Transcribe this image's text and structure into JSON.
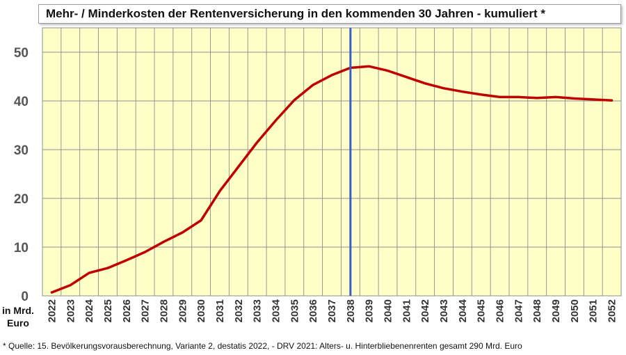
{
  "chart_data": {
    "type": "line",
    "title": "Mehr- / Minderkosten der Rentenversicherung in den kommenden 30 Jahren - kumuliert *",
    "ylabel": "in Mrd. Euro",
    "xlabel": "",
    "ylim": [
      0,
      55
    ],
    "yticks": [
      0,
      10,
      20,
      30,
      40,
      50
    ],
    "grid": true,
    "legend": "none",
    "highlight_year": "2038",
    "categories": [
      "2022",
      "2023",
      "2024",
      "2025",
      "2026",
      "2027",
      "2028",
      "2029",
      "2030",
      "2031",
      "2032",
      "2033",
      "2034",
      "2035",
      "2036",
      "2037",
      "2038",
      "2039",
      "2040",
      "2041",
      "2042",
      "2043",
      "2044",
      "2045",
      "2046",
      "2047",
      "2048",
      "2049",
      "2050",
      "2051",
      "2052"
    ],
    "series": [
      {
        "values": [
          0.7,
          2.2,
          4.7,
          5.7,
          7.3,
          9.0,
          11.1,
          13.0,
          15.5,
          21.5,
          26.5,
          31.5,
          36.0,
          40.2,
          43.3,
          45.3,
          46.8,
          47.1,
          46.2,
          44.9,
          43.6,
          42.6,
          41.9,
          41.3,
          40.8,
          40.8,
          40.6,
          40.8,
          40.5,
          40.3,
          40.1
        ]
      }
    ],
    "colors": {
      "plot_background": "#FFFFC8",
      "grid": "#8C8C8C",
      "line": "#C00000",
      "marker_line": "#3A5FCD"
    },
    "footnote": "* Quelle: 15. Bevölkerungsvorausberechnung, Variante 2, destatis 2022,  - DRV 2021: Alters- u. Hinterbliebenenrenten gesamt 290 Mrd. Euro"
  }
}
